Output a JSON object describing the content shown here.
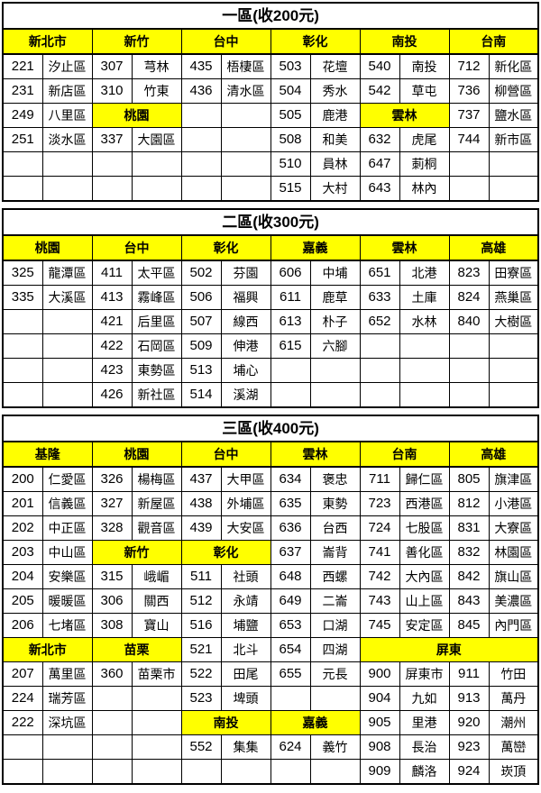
{
  "page": {
    "background": "#ffffff",
    "header_highlight": "#ffff00",
    "border_color": "#000000",
    "text_color": "#000000"
  },
  "zones": [
    {
      "title": "一區(收200元)",
      "rows": [
        [
          {
            "h": "新北市"
          },
          {
            "h": "新竹"
          },
          {
            "h": "台中"
          },
          {
            "h": "彰化"
          },
          {
            "h": "南投"
          },
          {
            "h": "台南"
          }
        ],
        [
          [
            "221",
            "汐止區"
          ],
          [
            "307",
            "芎林"
          ],
          [
            "435",
            "梧棲區"
          ],
          [
            "503",
            "花壇"
          ],
          [
            "540",
            "南投"
          ],
          [
            "712",
            "新化區"
          ]
        ],
        [
          [
            "231",
            "新店區"
          ],
          [
            "310",
            "竹東"
          ],
          [
            "436",
            "清水區"
          ],
          [
            "504",
            "秀水"
          ],
          [
            "542",
            "草屯"
          ],
          [
            "736",
            "柳營區"
          ]
        ],
        [
          [
            "249",
            "八里區"
          ],
          {
            "h": "桃園"
          },
          [
            "",
            ""
          ],
          [
            "505",
            "鹿港"
          ],
          {
            "h": "雲林"
          },
          [
            "737",
            "鹽水區"
          ]
        ],
        [
          [
            "251",
            "淡水區"
          ],
          [
            "337",
            "大園區"
          ],
          [
            "",
            ""
          ],
          [
            "508",
            "和美"
          ],
          [
            "632",
            "虎尾"
          ],
          [
            "744",
            "新市區"
          ]
        ],
        [
          [
            "",
            ""
          ],
          [
            "",
            ""
          ],
          [
            "",
            ""
          ],
          [
            "510",
            "員林"
          ],
          [
            "647",
            "莿桐"
          ],
          [
            "",
            ""
          ]
        ],
        [
          [
            "",
            ""
          ],
          [
            "",
            ""
          ],
          [
            "",
            ""
          ],
          [
            "515",
            "大村"
          ],
          [
            "643",
            "林內"
          ],
          [
            "",
            ""
          ]
        ]
      ]
    },
    {
      "title": "二區(收300元)",
      "rows": [
        [
          {
            "h": "桃園"
          },
          {
            "h": "台中"
          },
          {
            "h": "彰化"
          },
          {
            "h": "嘉義"
          },
          {
            "h": "雲林"
          },
          {
            "h": "高雄"
          }
        ],
        [
          [
            "325",
            "龍潭區"
          ],
          [
            "411",
            "太平區"
          ],
          [
            "502",
            "芬園"
          ],
          [
            "606",
            "中埔"
          ],
          [
            "651",
            "北港"
          ],
          [
            "823",
            "田寮區"
          ]
        ],
        [
          [
            "335",
            "大溪區"
          ],
          [
            "413",
            "霧峰區"
          ],
          [
            "506",
            "福興"
          ],
          [
            "611",
            "鹿草"
          ],
          [
            "633",
            "土庫"
          ],
          [
            "824",
            "燕巢區"
          ]
        ],
        [
          [
            "",
            ""
          ],
          [
            "421",
            "后里區"
          ],
          [
            "507",
            "線西"
          ],
          [
            "613",
            "朴子"
          ],
          [
            "652",
            "水林"
          ],
          [
            "840",
            "大樹區"
          ]
        ],
        [
          [
            "",
            ""
          ],
          [
            "422",
            "石岡區"
          ],
          [
            "509",
            "伸港"
          ],
          [
            "615",
            "六腳"
          ],
          [
            "",
            ""
          ],
          [
            "",
            ""
          ]
        ],
        [
          [
            "",
            ""
          ],
          [
            "423",
            "東勢區"
          ],
          [
            "513",
            "埔心"
          ],
          [
            "",
            ""
          ],
          [
            "",
            ""
          ],
          [
            "",
            ""
          ]
        ],
        [
          [
            "",
            ""
          ],
          [
            "426",
            "新社區"
          ],
          [
            "514",
            "溪湖"
          ],
          [
            "",
            ""
          ],
          [
            "",
            ""
          ],
          [
            "",
            ""
          ]
        ]
      ]
    },
    {
      "title": "三區(收400元)",
      "rows": [
        [
          {
            "h": "基隆"
          },
          {
            "h": "桃園"
          },
          {
            "h": "台中"
          },
          {
            "h": "雲林"
          },
          {
            "h": "台南"
          },
          {
            "h": "高雄"
          }
        ],
        [
          [
            "200",
            "仁愛區"
          ],
          [
            "326",
            "楊梅區"
          ],
          [
            "437",
            "大甲區"
          ],
          [
            "634",
            "褒忠"
          ],
          [
            "711",
            "歸仁區"
          ],
          [
            "805",
            "旗津區"
          ]
        ],
        [
          [
            "201",
            "信義區"
          ],
          [
            "327",
            "新屋區"
          ],
          [
            "438",
            "外埔區"
          ],
          [
            "635",
            "東勢"
          ],
          [
            "723",
            "西港區"
          ],
          [
            "812",
            "小港區"
          ]
        ],
        [
          [
            "202",
            "中正區"
          ],
          [
            "328",
            "觀音區"
          ],
          [
            "439",
            "大安區"
          ],
          [
            "636",
            "台西"
          ],
          [
            "724",
            "七股區"
          ],
          [
            "831",
            "大寮區"
          ]
        ],
        [
          [
            "203",
            "中山區"
          ],
          {
            "h": "新竹"
          },
          {
            "h": "彰化"
          },
          [
            "637",
            "崙背"
          ],
          [
            "741",
            "善化區"
          ],
          [
            "832",
            "林園區"
          ]
        ],
        [
          [
            "204",
            "安樂區"
          ],
          [
            "315",
            "峨嵋"
          ],
          [
            "511",
            "社頭"
          ],
          [
            "648",
            "西螺"
          ],
          [
            "742",
            "大內區"
          ],
          [
            "842",
            "旗山區"
          ]
        ],
        [
          [
            "205",
            "暖暖區"
          ],
          [
            "306",
            "關西"
          ],
          [
            "512",
            "永靖"
          ],
          [
            "649",
            "二崙"
          ],
          [
            "743",
            "山上區"
          ],
          [
            "843",
            "美濃區"
          ]
        ],
        [
          [
            "206",
            "七堵區"
          ],
          [
            "308",
            "寶山"
          ],
          [
            "516",
            "埔鹽"
          ],
          [
            "653",
            "口湖"
          ],
          [
            "745",
            "安定區"
          ],
          [
            "845",
            "內門區"
          ]
        ],
        [
          {
            "h": "新北市"
          },
          {
            "h": "苗栗"
          },
          [
            "521",
            "北斗"
          ],
          [
            "654",
            "四湖"
          ],
          {
            "h": "屏東",
            "span": 2
          }
        ],
        [
          [
            "207",
            "萬里區"
          ],
          [
            "360",
            "苗栗市"
          ],
          [
            "522",
            "田尾"
          ],
          [
            "655",
            "元長"
          ],
          [
            "900",
            "屏東市"
          ],
          [
            "911",
            "竹田"
          ]
        ],
        [
          [
            "224",
            "瑞芳區"
          ],
          [
            "",
            ""
          ],
          [
            "523",
            "埤頭"
          ],
          [
            "",
            ""
          ],
          [
            "904",
            "九如"
          ],
          [
            "913",
            "萬丹"
          ]
        ],
        [
          [
            "222",
            "深坑區"
          ],
          [
            "",
            ""
          ],
          {
            "h": "南投"
          },
          {
            "h": "嘉義"
          },
          [
            "905",
            "里港"
          ],
          [
            "920",
            "潮州"
          ]
        ],
        [
          [
            "",
            ""
          ],
          [
            "",
            ""
          ],
          [
            "552",
            "集集"
          ],
          [
            "624",
            "義竹"
          ],
          [
            "908",
            "長治"
          ],
          [
            "923",
            "萬巒"
          ]
        ],
        [
          [
            "",
            ""
          ],
          [
            "",
            ""
          ],
          [
            "",
            ""
          ],
          [
            "",
            ""
          ],
          [
            "909",
            "麟洛"
          ],
          [
            "924",
            "崁頂"
          ]
        ]
      ]
    }
  ]
}
